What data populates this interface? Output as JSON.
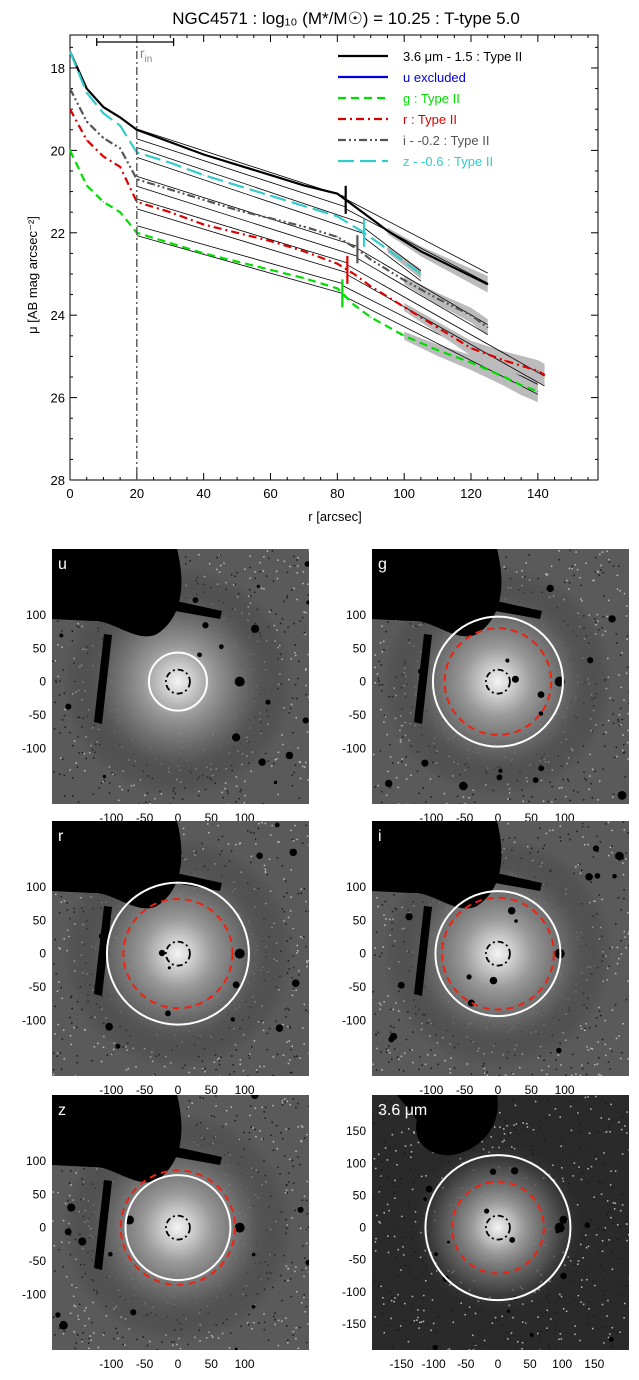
{
  "chart_data": [
    {
      "type": "line",
      "title": "NGC4571 : log₁₀ (M*/M☉) = 10.25 : T-type 5.0",
      "xlabel": "r [arcsec]",
      "ylabel": "μ [AB mag arcsec⁻²]",
      "xlim": [
        0,
        158
      ],
      "ylim": [
        28,
        17.2
      ],
      "y_inverted": true,
      "xticks": [
        0,
        20,
        40,
        60,
        80,
        100,
        120,
        140
      ],
      "yticks": [
        18,
        20,
        22,
        24,
        26,
        28
      ],
      "grid": false,
      "legend_position": "top-right",
      "inner_radius_label": "r_in",
      "inner_radius": 20,
      "inner_radius_errorbar": [
        8,
        31
      ],
      "series": [
        {
          "name": "3.6 μm - 1.5 : Type II",
          "color": "#000000",
          "dash": "solid",
          "break_r": 82.5,
          "x": [
            0,
            5,
            10,
            15,
            20,
            30,
            40,
            50,
            60,
            70,
            80,
            85,
            90,
            95,
            100,
            105,
            110,
            115,
            120,
            125
          ],
          "y": [
            17.6,
            18.5,
            18.95,
            19.2,
            19.5,
            19.8,
            20.1,
            20.35,
            20.6,
            20.85,
            21.05,
            21.35,
            21.65,
            21.95,
            22.2,
            22.45,
            22.65,
            22.85,
            23.05,
            23.25
          ],
          "fit_inner": [
            [
              20,
              19.6
            ],
            [
              82.5,
              21.25
            ]
          ],
          "fit_outer": [
            [
              82.5,
              21.3
            ],
            [
              125,
              23.1
            ]
          ]
        },
        {
          "name": "u excluded",
          "color": "#0000dd",
          "dash": "solid",
          "x": [],
          "y": []
        },
        {
          "name": "g : Type II",
          "color": "#00dd00",
          "dash": "dash",
          "break_r": 81.5,
          "x": [
            0,
            5,
            10,
            15,
            20,
            30,
            40,
            50,
            60,
            70,
            80,
            85,
            90,
            100,
            110,
            120,
            130,
            135,
            140
          ],
          "y": [
            20.0,
            20.85,
            21.25,
            21.5,
            22.0,
            22.25,
            22.5,
            22.7,
            22.9,
            23.1,
            23.35,
            23.75,
            24.05,
            24.5,
            24.85,
            25.15,
            25.5,
            25.7,
            25.85
          ],
          "fit_inner": [
            [
              20,
              21.95
            ],
            [
              81.5,
              23.35
            ]
          ],
          "fit_outer": [
            [
              81.5,
              23.4
            ],
            [
              140,
              25.8
            ]
          ]
        },
        {
          "name": "r : Type II",
          "color": "#dd0000",
          "dash": "dashdot",
          "break_r": 83,
          "x": [
            0,
            5,
            10,
            15,
            20,
            30,
            40,
            50,
            60,
            70,
            80,
            85,
            90,
            100,
            110,
            120,
            130,
            140,
            142
          ],
          "y": [
            19.0,
            19.75,
            20.15,
            20.4,
            21.25,
            21.5,
            21.8,
            22.0,
            22.2,
            22.45,
            22.75,
            23.0,
            23.3,
            23.8,
            24.3,
            24.8,
            25.1,
            25.35,
            25.45
          ],
          "fit_inner": [
            [
              20,
              21.3
            ],
            [
              83,
              22.85
            ]
          ],
          "fit_outer": [
            [
              83,
              22.9
            ],
            [
              142,
              25.6
            ]
          ]
        },
        {
          "name": "i - -0.2 : Type II",
          "color": "#555555",
          "dash": "dashdotdot",
          "break_r": 86,
          "x": [
            0,
            5,
            10,
            15,
            20,
            30,
            40,
            50,
            60,
            70,
            80,
            86,
            90,
            100,
            110,
            120,
            125
          ],
          "y": [
            18.5,
            19.3,
            19.7,
            19.95,
            20.7,
            20.95,
            21.2,
            21.45,
            21.65,
            21.85,
            22.1,
            22.4,
            22.65,
            23.15,
            23.6,
            24.0,
            24.3
          ],
          "fit_inner": [
            [
              20,
              20.75
            ],
            [
              86,
              22.45
            ]
          ],
          "fit_outer": [
            [
              86,
              22.5
            ],
            [
              125,
              24.35
            ]
          ]
        },
        {
          "name": "z - -0.6 : Type II",
          "color": "#33cccc",
          "dash": "longdash",
          "break_r": 88,
          "x": [
            0,
            5,
            10,
            15,
            20,
            30,
            40,
            50,
            60,
            70,
            80,
            88,
            95,
            100,
            105
          ],
          "y": [
            17.6,
            18.6,
            19.1,
            19.4,
            20.05,
            20.3,
            20.6,
            20.85,
            21.1,
            21.35,
            21.6,
            22.0,
            22.4,
            22.7,
            23.0
          ],
          "fit_inner": [
            [
              20,
              20.05
            ],
            [
              88,
              21.9
            ]
          ],
          "fit_outer": [
            [
              88,
              22.0
            ],
            [
              105,
              23.05
            ]
          ]
        }
      ]
    },
    {
      "type": "image-grid",
      "panels": [
        {
          "label": "u",
          "xticks": [
            "-100",
            "-50",
            "0",
            "50",
            "100"
          ],
          "yticks": [
            "100",
            "50",
            "0",
            "-50",
            "-100"
          ],
          "outer_circle_r": 58,
          "dashed_circle_r": null,
          "inner_circle_r": 12
        },
        {
          "label": "g",
          "xticks": [
            "-100",
            "-50",
            "0",
            "50",
            "100"
          ],
          "yticks": [
            "100",
            "50",
            "0",
            "-50",
            "-100"
          ],
          "outer_circle_r": 130,
          "dashed_circle_r": 82,
          "inner_circle_r": 12
        },
        {
          "label": "r",
          "xticks": [
            "-100",
            "-50",
            "0",
            "50",
            "100"
          ],
          "yticks": [
            "100",
            "50",
            "0",
            "-50",
            "-100"
          ],
          "outer_circle_r": 142,
          "dashed_circle_r": 84,
          "inner_circle_r": 12
        },
        {
          "label": "i",
          "xticks": [
            "-100",
            "-50",
            "0",
            "50",
            "100"
          ],
          "yticks": [
            "100",
            "50",
            "0",
            "-50",
            "-100"
          ],
          "outer_circle_r": 125,
          "dashed_circle_r": 86,
          "inner_circle_r": 12
        },
        {
          "label": "z",
          "xticks": [
            "-100",
            "-50",
            "0",
            "50",
            "100"
          ],
          "yticks": [
            "100",
            "50",
            "0",
            "-50",
            "-100"
          ],
          "outer_circle_r": 105,
          "dashed_circle_r": 88,
          "inner_circle_r": 12
        },
        {
          "label": "3.6 μm",
          "xticks": [
            "-150",
            "-100",
            "-50",
            "0",
            "50",
            "100",
            "150"
          ],
          "yticks": [
            "150",
            "100",
            "50",
            "0",
            "-50",
            "-100",
            "-150"
          ],
          "outer_circle_r": 125,
          "dashed_circle_r": 83,
          "inner_circle_r": 12
        }
      ]
    }
  ]
}
